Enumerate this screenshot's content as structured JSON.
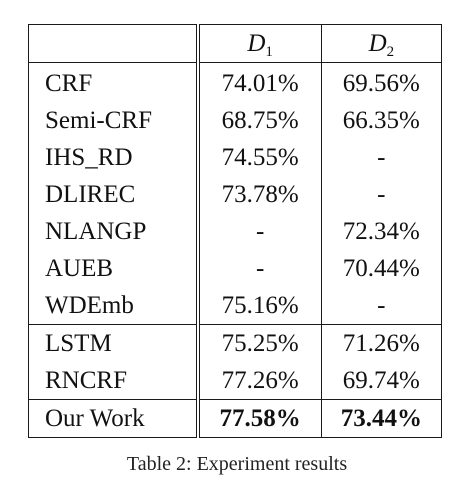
{
  "table": {
    "header": {
      "method": "",
      "d1": {
        "base": "D",
        "sub": "1"
      },
      "d2": {
        "base": "D",
        "sub": "2"
      }
    },
    "group_a": [
      {
        "method": "CRF",
        "d1": "74.01%",
        "d2": "69.56%"
      },
      {
        "method": "Semi-CRF",
        "d1": "68.75%",
        "d2": "66.35%"
      },
      {
        "method": "IHS_RD",
        "d1": "74.55%",
        "d2": "-"
      },
      {
        "method": "DLIREC",
        "d1": "73.78%",
        "d2": "-"
      },
      {
        "method": "NLANGP",
        "d1": "-",
        "d2": "72.34%"
      },
      {
        "method": "AUEB",
        "d1": "-",
        "d2": "70.44%"
      },
      {
        "method": "WDEmb",
        "d1": "75.16%",
        "d2": "-"
      }
    ],
    "group_b": [
      {
        "method": "LSTM",
        "d1": "75.25%",
        "d2": "71.26%"
      },
      {
        "method": "RNCRF",
        "d1": "77.26%",
        "d2": "69.74%"
      }
    ],
    "group_c": [
      {
        "method": "Our Work",
        "d1": "77.58%",
        "d2": "73.44%"
      }
    ]
  },
  "caption": "Table 2: Experiment results"
}
